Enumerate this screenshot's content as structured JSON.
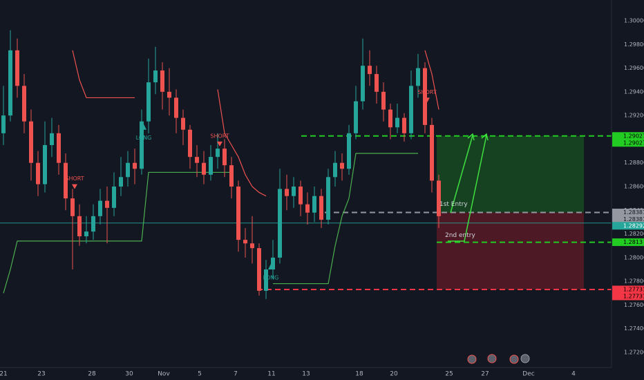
{
  "chart_data": {
    "type": "candlestick",
    "xlim": [
      0,
      88.5
    ],
    "ylim": [
      1.272,
      1.3
    ],
    "grid": true,
    "xticks": [
      {
        "value": 0.5,
        "label": "21"
      },
      {
        "value": 6,
        "label": "23"
      },
      {
        "value": 13.3,
        "label": "28"
      },
      {
        "value": 18.7,
        "label": "30"
      },
      {
        "value": 23.7,
        "label": "Nov"
      },
      {
        "value": 28.9,
        "label": "5"
      },
      {
        "value": 34.1,
        "label": "7"
      },
      {
        "value": 39.3,
        "label": "11"
      },
      {
        "value": 44.3,
        "label": "13"
      },
      {
        "value": 52,
        "label": "18"
      },
      {
        "value": 57,
        "label": "20"
      },
      {
        "value": 65,
        "label": "25"
      },
      {
        "value": 70.2,
        "label": "27"
      },
      {
        "value": 76.5,
        "label": "Dec"
      },
      {
        "value": 83,
        "label": "4"
      }
    ],
    "yticks": [
      {
        "value": 1.3,
        "label": "1.30000"
      },
      {
        "value": 1.298,
        "label": "1.29800"
      },
      {
        "value": 1.296,
        "label": "1.29600"
      },
      {
        "value": 1.294,
        "label": "1.29400"
      },
      {
        "value": 1.292,
        "label": "1.29200"
      },
      {
        "value": 1.29,
        "label": "1.29000"
      },
      {
        "value": 1.288,
        "label": "1.28800"
      },
      {
        "value": 1.286,
        "label": "1.28600"
      },
      {
        "value": 1.284,
        "label": "1.28400"
      },
      {
        "value": 1.282,
        "label": "1.28200"
      },
      {
        "value": 1.28,
        "label": "1.28000"
      },
      {
        "value": 1.278,
        "label": "1.27800"
      },
      {
        "value": 1.276,
        "label": "1.27600"
      },
      {
        "value": 1.274,
        "label": "1.27400"
      },
      {
        "value": 1.272,
        "label": "1.27200"
      }
    ],
    "up_color": "#26a69a",
    "down_color": "#ef5350",
    "x": [
      0.5,
      1.5,
      2.5,
      3.5,
      4.5,
      5.5,
      6.5,
      7.5,
      8.5,
      9.5,
      10.5,
      11.5,
      12.5,
      13.5,
      14.5,
      15.5,
      16.5,
      17.5,
      18.5,
      19.5,
      20.5,
      21.5,
      22.5,
      23.5,
      24.5,
      25.5,
      26.5,
      27.5,
      28.5,
      29.5,
      30.5,
      31.5,
      32.5,
      33.5,
      34.5,
      35.5,
      36.5,
      37.5,
      38.5,
      39.5,
      40.5,
      41.5,
      42.5,
      43.5,
      44.5,
      45.5,
      46.5,
      47.5,
      48.5,
      49.5,
      50.5,
      51.5,
      52.5,
      53.5,
      54.5,
      55.5,
      56.5,
      57.5,
      58.5,
      59.5,
      60.5,
      61.5,
      62.5,
      63.5
    ],
    "open": [
      1.2905,
      1.292,
      1.2975,
      1.2945,
      1.2915,
      1.288,
      1.2862,
      1.2895,
      1.2905,
      1.288,
      1.285,
      1.2835,
      1.2818,
      1.2822,
      1.2835,
      1.2848,
      1.2842,
      1.286,
      1.2868,
      1.288,
      1.2875,
      1.2915,
      1.2948,
      1.2958,
      1.294,
      1.2935,
      1.2918,
      1.2908,
      1.2885,
      1.288,
      1.287,
      1.2885,
      1.2892,
      1.2878,
      1.286,
      1.2815,
      1.2812,
      1.2808,
      1.2772,
      1.279,
      1.28,
      1.2858,
      1.2852,
      1.286,
      1.2845,
      1.2838,
      1.2852,
      1.2832,
      1.2868,
      1.288,
      1.2875,
      1.2905,
      1.2932,
      1.2962,
      1.2955,
      1.294,
      1.2925,
      1.291,
      1.2918,
      1.2905,
      1.2945,
      1.296,
      1.2912,
      1.2865
    ],
    "high": [
      1.2945,
      1.2992,
      1.2985,
      1.2955,
      1.2925,
      1.289,
      1.2915,
      1.2918,
      1.2912,
      1.2888,
      1.2858,
      1.2845,
      1.2835,
      1.2845,
      1.2858,
      1.286,
      1.2872,
      1.2885,
      1.289,
      1.2892,
      1.2925,
      1.2968,
      1.2978,
      1.2965,
      1.296,
      1.2942,
      1.2925,
      1.2912,
      1.2895,
      1.289,
      1.2895,
      1.2905,
      1.29,
      1.2885,
      1.2865,
      1.2825,
      1.2835,
      1.2812,
      1.2798,
      1.2815,
      1.2875,
      1.287,
      1.2868,
      1.2865,
      1.2855,
      1.286,
      1.2858,
      1.2875,
      1.289,
      1.2888,
      1.2912,
      1.2945,
      1.2985,
      1.2975,
      1.2962,
      1.2948,
      1.293,
      1.293,
      1.2922,
      1.2958,
      1.2972,
      1.2965,
      1.2918,
      1.287
    ],
    "low": [
      1.2895,
      1.2915,
      1.2935,
      1.2905,
      1.2865,
      1.2852,
      1.2855,
      1.2885,
      1.287,
      1.284,
      1.279,
      1.281,
      1.2812,
      1.2815,
      1.2828,
      1.2812,
      1.2835,
      1.2852,
      1.286,
      1.2862,
      1.287,
      1.2905,
      1.2938,
      1.2925,
      1.292,
      1.2905,
      1.2895,
      1.2875,
      1.2868,
      1.2862,
      1.2865,
      1.2875,
      1.2868,
      1.285,
      1.2805,
      1.28,
      1.2795,
      1.2768,
      1.2765,
      1.2782,
      1.2795,
      1.284,
      1.2842,
      1.2835,
      1.2828,
      1.283,
      1.2825,
      1.2828,
      1.286,
      1.2865,
      1.287,
      1.29,
      1.2925,
      1.2945,
      1.293,
      1.2915,
      1.29,
      1.2905,
      1.2898,
      1.29,
      1.2935,
      1.2905,
      1.2855,
      1.2825
    ],
    "close": [
      1.292,
      1.2975,
      1.2945,
      1.2915,
      1.288,
      1.2862,
      1.2895,
      1.2905,
      1.288,
      1.285,
      1.2835,
      1.2818,
      1.2822,
      1.2835,
      1.2848,
      1.2842,
      1.286,
      1.2868,
      1.288,
      1.2875,
      1.2915,
      1.2948,
      1.2958,
      1.294,
      1.2935,
      1.2918,
      1.2908,
      1.2885,
      1.288,
      1.287,
      1.2885,
      1.2892,
      1.2878,
      1.286,
      1.2815,
      1.2812,
      1.2808,
      1.2772,
      1.279,
      1.28,
      1.2858,
      1.2852,
      1.286,
      1.2845,
      1.2838,
      1.2852,
      1.2832,
      1.2868,
      1.288,
      1.2875,
      1.2905,
      1.2932,
      1.2962,
      1.2955,
      1.294,
      1.2925,
      1.291,
      1.2918,
      1.2905,
      1.2945,
      1.296,
      1.2912,
      1.2865,
      1.2835
    ],
    "indicators": [
      {
        "color": "#4caf50",
        "values": [
          1.277,
          1.279,
          1.2814,
          1.2814,
          1.2814,
          1.2814,
          1.2814,
          1.2814,
          1.2814,
          1.2814,
          1.2814,
          1.2814,
          1.2814,
          1.2814,
          1.2814,
          1.2814,
          1.2814,
          1.2814,
          1.2814,
          1.2814,
          1.2814,
          1.2872,
          1.2872,
          1.2872,
          1.2872,
          1.2872,
          1.2872,
          1.2872,
          1.2872,
          1.2872,
          1.2872,
          1.2872,
          1.2872,
          1.2872,
          null,
          null,
          null,
          null,
          null,
          1.2778,
          1.2778,
          1.2778,
          1.2778,
          1.2778,
          1.2778,
          1.2778,
          1.2778,
          1.2778,
          1.281,
          1.2835,
          1.285,
          1.2888,
          1.2888,
          1.2888,
          1.2888,
          1.2888,
          1.2888,
          1.2888,
          1.2888,
          1.2888,
          1.2888,
          null,
          null,
          null
        ]
      },
      {
        "color": "#ef5350",
        "values": [
          null,
          null,
          null,
          null,
          null,
          null,
          null,
          null,
          null,
          null,
          1.2975,
          1.295,
          1.2935,
          1.2935,
          1.2935,
          1.2935,
          1.2935,
          1.2935,
          1.2935,
          1.2935,
          null,
          null,
          null,
          null,
          null,
          null,
          null,
          null,
          null,
          null,
          null,
          1.2942,
          1.2905,
          1.2895,
          1.2885,
          1.287,
          1.286,
          1.2855,
          1.2852,
          null,
          null,
          null,
          null,
          null,
          null,
          null,
          null,
          null,
          null,
          null,
          null,
          null,
          null,
          null,
          null,
          null,
          null,
          null,
          null,
          null,
          null,
          1.2975,
          1.2955,
          1.2925
        ]
      }
    ],
    "signals": [
      {
        "label": "SHORT",
        "x": 10.8,
        "price": 1.2862
      },
      {
        "label": "LONG",
        "x": 20.8,
        "price": 1.2908
      },
      {
        "label": "SHORT",
        "x": 31.8,
        "price": 1.2898
      },
      {
        "label": "LONG",
        "x": 39.2,
        "price": 1.279
      },
      {
        "label": "SHORT",
        "x": 61.8,
        "price": 1.2935
      }
    ],
    "box_x": [
      63.2,
      84.5
    ],
    "levels": [
      {
        "price": 1.29027,
        "color": "#22cc22",
        "twice": true
      },
      {
        "price": 1.28381,
        "color": "#9598a1",
        "twice": true
      },
      {
        "price": 1.2813,
        "color": "#22cc22",
        "twice": false
      },
      {
        "price": 1.27731,
        "color": "#f23645",
        "twice": true
      }
    ],
    "current_price": 1.28292,
    "current_color": "#26a69a",
    "entries": [
      {
        "label": "1st Entry",
        "x": 63.6,
        "price": 1.2845
      },
      {
        "label": "2nd entry",
        "x": 64.4,
        "price": 1.2819
      }
    ]
  }
}
